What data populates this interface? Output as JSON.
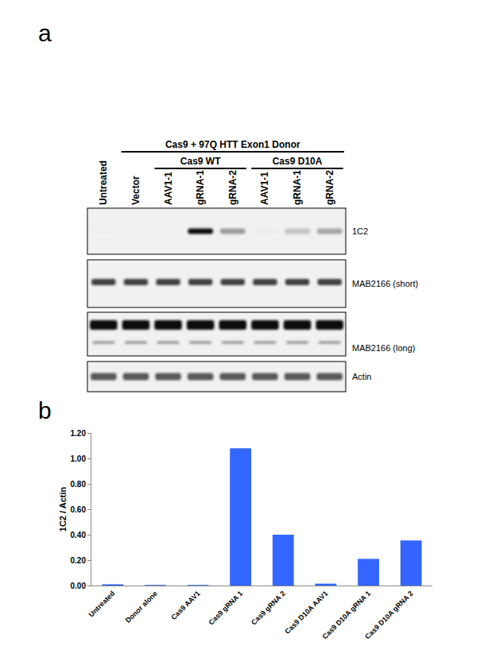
{
  "panel_a": {
    "label": "a",
    "first_lanes": [
      "Untreated"
    ],
    "header": {
      "text": "Cas9 + 97Q HTT Exon1 Donor",
      "lanes": [
        "Vector"
      ],
      "groups": [
        {
          "label": "Cas9 WT",
          "lanes": [
            "AAV1-1",
            "gRNA-1",
            "gRNA-2"
          ]
        },
        {
          "label": "Cas9 D10A",
          "lanes": [
            "AAV1-1",
            "gRNA-1",
            "gRNA-2"
          ]
        }
      ]
    },
    "blots": [
      "1C2",
      "MAB2166 (short)",
      "MAB2166 (long)",
      "Actin"
    ]
  },
  "panel_b_label": "b",
  "chart_data": {
    "type": "bar",
    "categories": [
      "Untreated",
      "Donor alone",
      "Cas9 AAV1",
      "Cas9 gRNA 1",
      "Cas9 gRNA 2",
      "Cas9 D10A AAV1",
      "Cas9 D10A gRNA 1",
      "Cas9 D10A gRNA 2"
    ],
    "values": [
      0.01,
      0.005,
      0.005,
      1.08,
      0.4,
      0.015,
      0.21,
      0.355
    ],
    "color": "#3366ff",
    "y_label": "1C2 / Actin",
    "ylim": [
      0,
      1.2
    ],
    "yticks": [
      {
        "value": 0,
        "label": "0.00"
      },
      {
        "value": 0.2,
        "label": "0.20"
      },
      {
        "value": 0.4,
        "label": "0.40"
      },
      {
        "value": 0.6,
        "label": "0.60"
      },
      {
        "value": 0.8,
        "label": "0.80"
      },
      {
        "value": 1.0,
        "label": "1.00"
      },
      {
        "value": 1.2,
        "label": "1.20"
      }
    ],
    "grid": false
  }
}
